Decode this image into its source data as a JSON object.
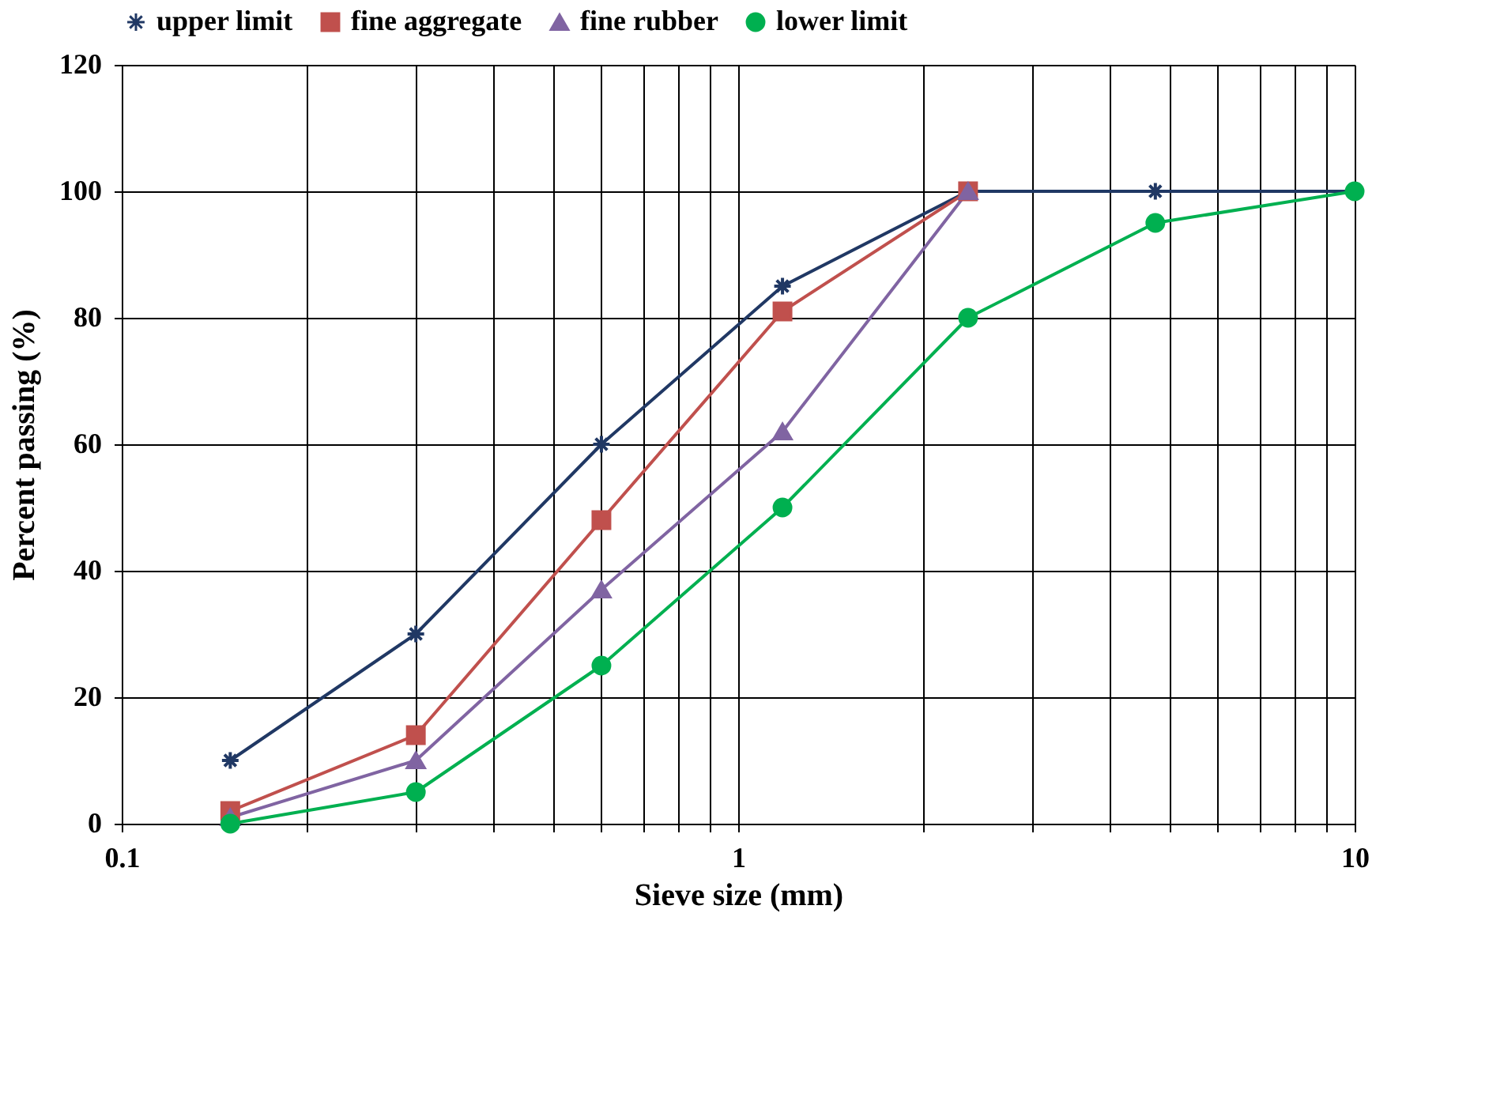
{
  "chart_data": {
    "type": "line",
    "xlabel": "Sieve size (mm)",
    "ylabel": "Percent passing (%)",
    "log": "x",
    "grid": true,
    "legend": "top",
    "line_style": "solid",
    "xlim": [
      0.1,
      10
    ],
    "xticks": [
      0.1,
      {
        "value": 0.2,
        "label": null
      },
      {
        "value": 0.3,
        "label": null
      },
      {
        "value": 0.4,
        "label": null
      },
      {
        "value": 0.5,
        "label": null
      },
      {
        "value": 0.6,
        "label": null
      },
      {
        "value": 0.7,
        "label": null
      },
      {
        "value": 0.8,
        "label": null
      },
      {
        "value": 0.9,
        "label": null
      },
      1,
      {
        "value": 2,
        "label": null
      },
      {
        "value": 3,
        "label": null
      },
      {
        "value": 4,
        "label": null
      },
      {
        "value": 5,
        "label": null
      },
      {
        "value": 6,
        "label": null
      },
      {
        "value": 7,
        "label": null
      },
      {
        "value": 8,
        "label": null
      },
      {
        "value": 9,
        "label": null
      },
      10
    ],
    "ylim": [
      0,
      120
    ],
    "yticks": [
      0,
      20,
      40,
      60,
      80,
      100,
      120
    ],
    "series": [
      {
        "name": "upper limit",
        "color": "#203864",
        "marker": "cross",
        "x": [
          0.15,
          0.3,
          0.6,
          1.18,
          2.36,
          4.75,
          10
        ],
        "values": [
          10,
          30,
          60,
          85,
          100,
          100,
          100
        ]
      },
      {
        "name": "fine aggregate",
        "color": "#c0504d",
        "marker": "square",
        "x": [
          0.15,
          0.3,
          0.6,
          1.18,
          2.36
        ],
        "values": [
          2,
          14,
          48,
          81,
          100
        ]
      },
      {
        "name": "fine rubber",
        "color": "#8064a2",
        "marker": "triangle",
        "x": [
          0.15,
          0.3,
          0.6,
          1.18,
          2.36
        ],
        "values": [
          1,
          10,
          37,
          62,
          100
        ]
      },
      {
        "name": "lower limit",
        "color": "#00b050",
        "marker": "circle",
        "x": [
          0.15,
          0.3,
          0.6,
          1.18,
          2.36,
          4.75,
          10
        ],
        "values": [
          0,
          5,
          25,
          50,
          80,
          95,
          100
        ]
      }
    ]
  }
}
